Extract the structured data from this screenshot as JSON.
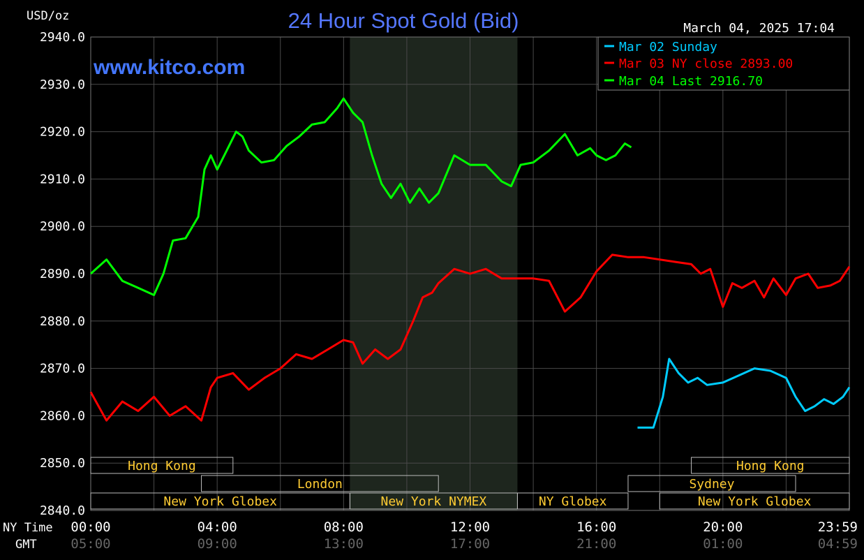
{
  "chart_data": {
    "type": "line",
    "title": "24 Hour Spot Gold (Bid)",
    "unit_label": "USD/oz",
    "timestamp": "March 04, 2025 17:04",
    "watermark": "www.kitco.com",
    "ylim": [
      2840,
      2940
    ],
    "y_ticks": [
      "2940.0",
      "2930.0",
      "2920.0",
      "2910.0",
      "2900.0",
      "2890.0",
      "2880.0",
      "2870.0",
      "2860.0",
      "2850.0",
      "2840.0"
    ],
    "x_axis": {
      "ny_label": "NY Time",
      "gmt_label": "GMT",
      "ny_ticks": [
        "00:00",
        "04:00",
        "08:00",
        "12:00",
        "16:00",
        "20:00",
        "23:59"
      ],
      "gmt_ticks": [
        "05:00",
        "09:00",
        "13:00",
        "17:00",
        "21:00",
        "01:00",
        "04:59"
      ]
    },
    "legend": [
      {
        "label": "Mar 02 Sunday",
        "color": "#00ccff"
      },
      {
        "label": "Mar 03 NY close 2893.00",
        "color": "#ff0000"
      },
      {
        "label": "Mar 04 Last 2916.70",
        "color": "#00ff00"
      }
    ],
    "series": [
      {
        "color": "#00ff00",
        "x": [
          0,
          0.5,
          1.0,
          1.5,
          2.0,
          2.3,
          2.6,
          3.0,
          3.4,
          3.6,
          3.8,
          4.0,
          4.3,
          4.6,
          4.8,
          5.0,
          5.4,
          5.8,
          6.2,
          6.6,
          7.0,
          7.4,
          7.8,
          8.0,
          8.3,
          8.6,
          8.9,
          9.2,
          9.5,
          9.8,
          10.1,
          10.4,
          10.7,
          11.0,
          11.5,
          12.0,
          12.5,
          13.0,
          13.3,
          13.6,
          14.0,
          14.5,
          15.0,
          15.4,
          15.8,
          16.0,
          16.3,
          16.6,
          16.9,
          17.1
        ],
        "values": [
          2890,
          2893,
          2888.5,
          2887,
          2885.5,
          2890,
          2897,
          2897.5,
          2902,
          2912,
          2915,
          2912,
          2916,
          2920,
          2919,
          2916,
          2913.5,
          2914,
          2917,
          2919,
          2921.5,
          2922,
          2925,
          2927,
          2924,
          2922,
          2915,
          2909,
          2906,
          2909,
          2905,
          2908,
          2905,
          2907,
          2915,
          2913,
          2913,
          2909.5,
          2908.5,
          2913,
          2913.5,
          2916,
          2919.5,
          2915,
          2916.5,
          2915,
          2914,
          2915,
          2917.5,
          2916.7
        ]
      },
      {
        "color": "#ff0000",
        "x": [
          0,
          0.5,
          1.0,
          1.5,
          2.0,
          2.5,
          3.0,
          3.5,
          3.8,
          4.0,
          4.5,
          5.0,
          5.5,
          6.0,
          6.5,
          7.0,
          7.5,
          8.0,
          8.3,
          8.6,
          9.0,
          9.4,
          9.8,
          10.2,
          10.5,
          10.8,
          11.0,
          11.5,
          12.0,
          12.5,
          13.0,
          13.5,
          14.0,
          14.5,
          15.0,
          15.5,
          16.0,
          16.5,
          17.0,
          17.5,
          18.0,
          18.5,
          19.0,
          19.3,
          19.6,
          20.0,
          20.3,
          20.6,
          21.0,
          21.3,
          21.6,
          22.0,
          22.3,
          22.7,
          23.0,
          23.4,
          23.7,
          24.0
        ],
        "values": [
          2865,
          2859,
          2863,
          2861,
          2864,
          2860,
          2862,
          2859,
          2866,
          2868,
          2869,
          2865.5,
          2868,
          2870,
          2873,
          2872,
          2874,
          2876,
          2875.5,
          2871,
          2874,
          2872,
          2874,
          2880,
          2885,
          2886,
          2888,
          2891,
          2890,
          2891,
          2889,
          2889,
          2889,
          2888.5,
          2882,
          2885,
          2890.5,
          2894,
          2893.5,
          2893.5,
          2893,
          2892.5,
          2892,
          2890,
          2891,
          2883,
          2888,
          2887,
          2888.5,
          2885,
          2889,
          2885.5,
          2889,
          2890,
          2887,
          2887.5,
          2888.5,
          2891.5
        ]
      },
      {
        "color": "#00ccff",
        "x": [
          17.3,
          17.5,
          17.8,
          18.1,
          18.3,
          18.6,
          18.9,
          19.2,
          19.5,
          20.0,
          20.5,
          21.0,
          21.5,
          22.0,
          22.3,
          22.6,
          22.9,
          23.2,
          23.5,
          23.8,
          24.0
        ],
        "values": [
          2857.5,
          2857.5,
          2857.5,
          2864,
          2872,
          2869,
          2867,
          2868,
          2866.5,
          2867,
          2868.5,
          2870,
          2869.5,
          2868,
          2864,
          2861,
          2862,
          2863.5,
          2862.5,
          2864,
          2866
        ]
      }
    ],
    "markets": [
      {
        "label": "Hong Kong",
        "row": 1,
        "start": 0,
        "end": 4.5
      },
      {
        "label": "London",
        "row": 2,
        "start": 3.5,
        "end": 11.0
      },
      {
        "label": "New York Globex",
        "row": 3,
        "start": 0,
        "end": 8.2
      },
      {
        "label": "New York NYMEX",
        "row": 3,
        "start": 8.2,
        "end": 13.5
      },
      {
        "label": "NY Globex",
        "row": 3,
        "start": 13.5,
        "end": 17.0
      },
      {
        "label": "Hong Kong",
        "row": 1,
        "start": 19.0,
        "end": 24.0
      },
      {
        "label": "Sydney",
        "row": 2,
        "start": 17.0,
        "end": 22.3
      },
      {
        "label": "New York Globex",
        "row": 3,
        "start": 18.0,
        "end": 24.0
      }
    ],
    "shaded_region": [
      8.2,
      13.5
    ],
    "grid": true
  }
}
